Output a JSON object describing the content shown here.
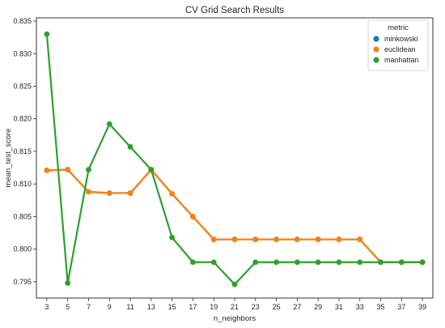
{
  "chart_data": {
    "type": "line",
    "title": "CV Grid Search Results",
    "xlabel": "n_neighbors",
    "ylabel": "mean_test_score",
    "categories": [
      "3",
      "5",
      "7",
      "9",
      "11",
      "13",
      "15",
      "17",
      "19",
      "21",
      "23",
      "25",
      "27",
      "29",
      "31",
      "33",
      "35",
      "37",
      "39"
    ],
    "yticks": [
      "0.795",
      "0.800",
      "0.805",
      "0.810",
      "0.815",
      "0.820",
      "0.825",
      "0.830",
      "0.835"
    ],
    "ylim": [
      0.7925,
      0.8355
    ],
    "legend": {
      "title": "metric",
      "placement": "top-right"
    },
    "series": [
      {
        "name": "minkowski",
        "color": "#1f77b4",
        "values": [
          0.8121,
          0.8122,
          0.8088,
          0.8086,
          0.8086,
          0.8122,
          0.8085,
          0.805,
          0.8015,
          0.8015,
          0.8015,
          0.8015,
          0.8015,
          0.8015,
          0.8015,
          0.8015,
          0.798,
          0.798,
          0.798
        ]
      },
      {
        "name": "euclidean",
        "color": "#ff7f0e",
        "values": [
          0.8121,
          0.8122,
          0.8088,
          0.8086,
          0.8086,
          0.8122,
          0.8085,
          0.805,
          0.8015,
          0.8015,
          0.8015,
          0.8015,
          0.8015,
          0.8015,
          0.8015,
          0.8015,
          0.798,
          0.798,
          0.798
        ]
      },
      {
        "name": "manhattan",
        "color": "#2ca02c",
        "values": [
          0.833,
          0.7948,
          0.8122,
          0.8192,
          0.8157,
          0.8122,
          0.8018,
          0.798,
          0.798,
          0.7946,
          0.798,
          0.798,
          0.798,
          0.798,
          0.798,
          0.798,
          0.798,
          0.798,
          0.798
        ]
      }
    ],
    "grid": false
  }
}
